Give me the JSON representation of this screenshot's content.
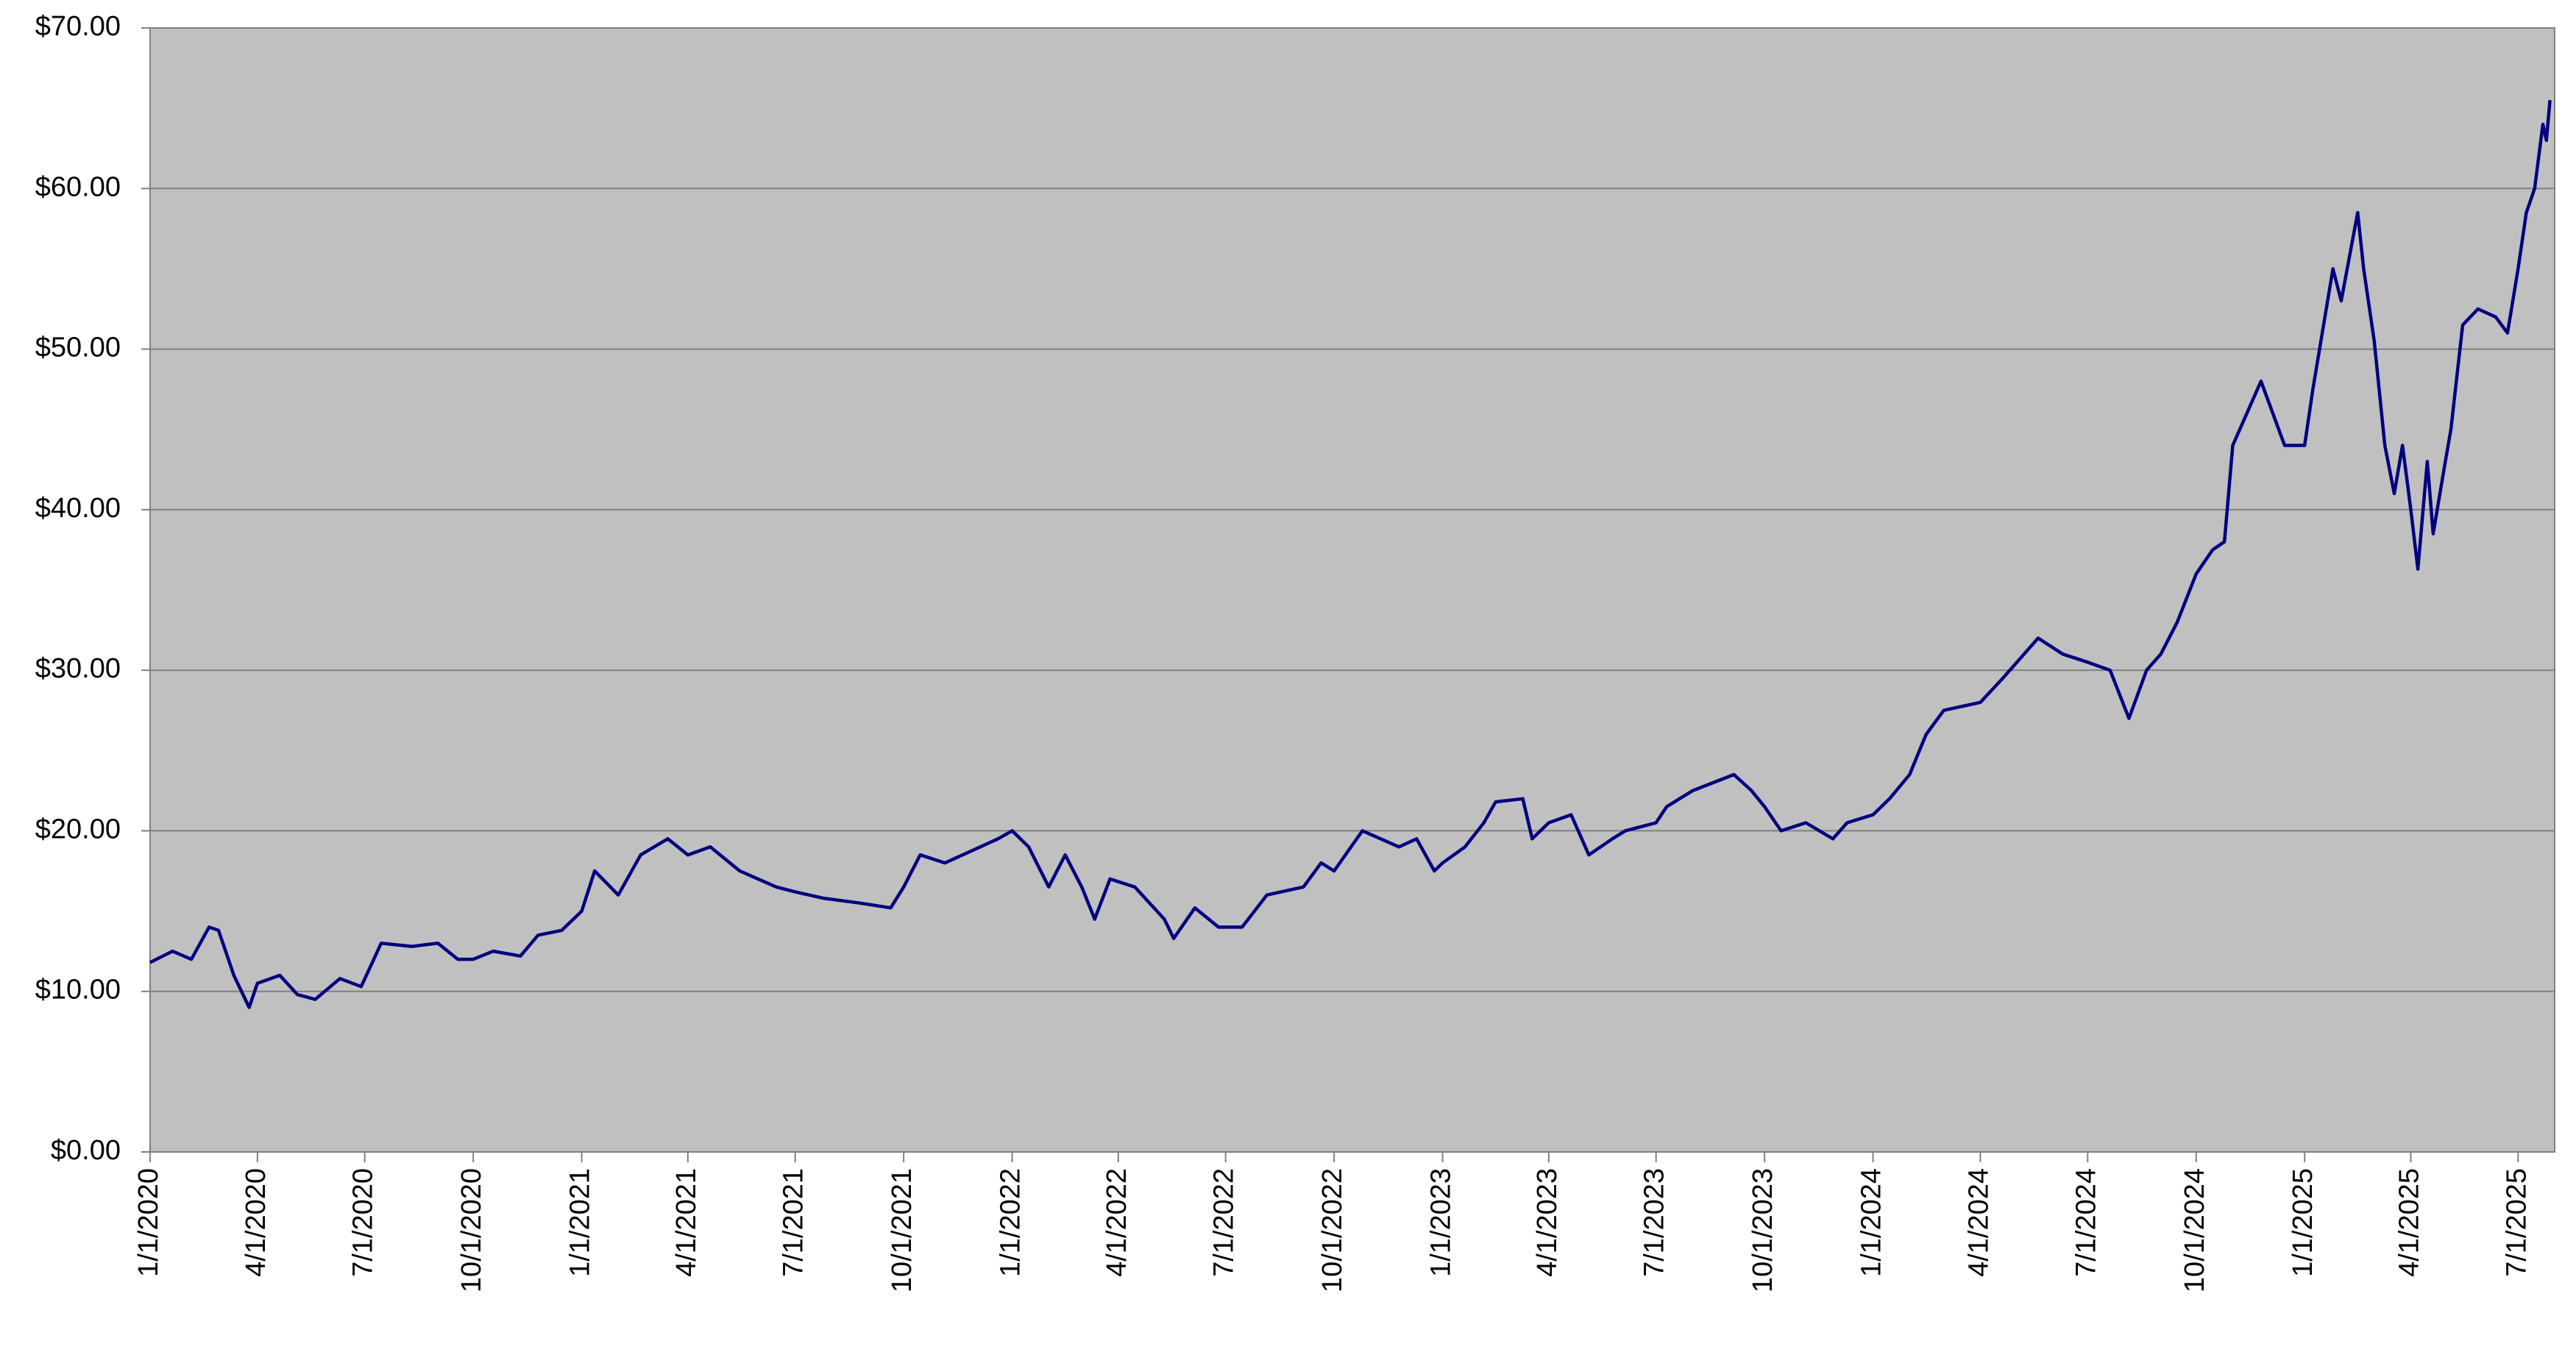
{
  "chart_data": {
    "type": "line",
    "color": "#000080",
    "background": "#c0c0c0",
    "grid": true,
    "xlim": [
      "1/1/2020",
      "8/1/2025"
    ],
    "xticks": [
      "1/1/2020",
      "4/1/2020",
      "7/1/2020",
      "10/1/2020",
      "1/1/2021",
      "4/1/2021",
      "7/1/2021",
      "10/1/2021",
      "1/1/2022",
      "4/1/2022",
      "7/1/2022",
      "10/1/2022",
      "1/1/2023",
      "4/1/2023",
      "7/1/2023",
      "10/1/2023",
      "1/1/2024",
      "4/1/2024",
      "7/1/2024",
      "10/1/2024",
      "1/1/2025",
      "4/1/2025",
      "7/1/2025"
    ],
    "ylim": [
      0,
      70
    ],
    "yticks": [
      {
        "value": 0,
        "label": "$0.00"
      },
      {
        "value": 10,
        "label": "$10.00"
      },
      {
        "value": 20,
        "label": "$20.00"
      },
      {
        "value": 30,
        "label": "$30.00"
      },
      {
        "value": 40,
        "label": "$40.00"
      },
      {
        "value": 50,
        "label": "$50.00"
      },
      {
        "value": 60,
        "label": "$60.00"
      },
      {
        "value": 70,
        "label": "$70.00"
      }
    ],
    "x": [
      "1/1/2020",
      "1/20/2020",
      "2/5/2020",
      "2/20/2020",
      "2/28/2020",
      "3/12/2020",
      "3/25/2020",
      "4/1/2020",
      "4/20/2020",
      "5/5/2020",
      "5/20/2020",
      "6/10/2020",
      "6/28/2020",
      "7/15/2020",
      "8/10/2020",
      "9/1/2020",
      "9/18/2020",
      "10/1/2020",
      "10/18/2020",
      "11/10/2020",
      "11/25/2020",
      "12/15/2020",
      "1/1/2021",
      "1/12/2021",
      "2/1/2021",
      "2/20/2021",
      "3/15/2021",
      "4/1/2021",
      "4/20/2021",
      "5/15/2021",
      "6/15/2021",
      "7/1/2021",
      "7/25/2021",
      "8/25/2021",
      "9/20/2021",
      "10/1/2021",
      "10/15/2021",
      "11/5/2021",
      "12/5/2021",
      "12/20/2021",
      "1/1/2022",
      "1/15/2022",
      "2/1/2022",
      "2/15/2022",
      "3/1/2022",
      "3/12/2022",
      "3/25/2022",
      "4/15/2022",
      "5/10/2022",
      "5/18/2022",
      "6/5/2022",
      "6/25/2022",
      "7/15/2022",
      "8/5/2022",
      "9/5/2022",
      "9/20/2022",
      "10/1/2022",
      "10/25/2022",
      "11/25/2022",
      "12/10/2022",
      "12/25/2022",
      "1/1/2023",
      "1/20/2023",
      "2/5/2023",
      "2/15/2023",
      "3/10/2023",
      "3/18/2023",
      "4/1/2023",
      "4/20/2023",
      "5/5/2023",
      "5/25/2023",
      "6/5/2023",
      "7/1/2023",
      "7/10/2023",
      "8/1/2023",
      "9/5/2023",
      "9/20/2023",
      "10/1/2023",
      "10/15/2023",
      "11/5/2023",
      "11/28/2023",
      "12/10/2023",
      "1/1/2024",
      "1/15/2024",
      "2/1/2024",
      "2/15/2024",
      "3/1/2024",
      "4/1/2024",
      "4/20/2024",
      "5/20/2024",
      "6/10/2024",
      "7/1/2024",
      "7/20/2024",
      "8/5/2024",
      "8/20/2024",
      "9/1/2024",
      "9/15/2024",
      "10/1/2024",
      "10/15/2024",
      "10/25/2024",
      "11/1/2024",
      "11/25/2024",
      "12/15/2024",
      "1/1/2025",
      "1/8/2025",
      "1/25/2025",
      "2/1/2025",
      "2/15/2025",
      "2/20/2025",
      "3/1/2025",
      "3/10/2025",
      "3/18/2025",
      "3/25/2025",
      "4/1/2025",
      "4/7/2025",
      "4/15/2025",
      "4/20/2025",
      "4/28/2025",
      "5/5/2025",
      "5/15/2025",
      "5/28/2025",
      "6/12/2025",
      "6/22/2025",
      "7/1/2025",
      "7/8/2025",
      "7/15/2025",
      "7/22/2025",
      "7/25/2025",
      "7/28/2025"
    ],
    "values": [
      11.8,
      12.5,
      12,
      14,
      13.8,
      11,
      9,
      10.5,
      11,
      9.8,
      9.5,
      10.8,
      10.3,
      13,
      12.8,
      13,
      12,
      12,
      12.5,
      12.2,
      13.5,
      13.8,
      15,
      17.5,
      16,
      18.5,
      19.5,
      18.5,
      19,
      17.5,
      16.5,
      16.2,
      15.8,
      15.5,
      15.2,
      16.5,
      18.5,
      18,
      19,
      19.5,
      20,
      19,
      16.5,
      18.5,
      16.5,
      14.5,
      17,
      16.5,
      14.5,
      13.3,
      15.2,
      14,
      14,
      16,
      16.5,
      18,
      17.5,
      20,
      19,
      19.5,
      17.5,
      18,
      19,
      20.5,
      21.8,
      22,
      19.5,
      20.5,
      21,
      18.5,
      19.5,
      20,
      20.5,
      21.5,
      22.5,
      23.5,
      22.5,
      21.5,
      20,
      20.5,
      19.5,
      20.5,
      21,
      22,
      23.5,
      26,
      27.5,
      28,
      29.5,
      32,
      31,
      30.5,
      30,
      27,
      30,
      31,
      33,
      36,
      37.5,
      38,
      44,
      48,
      44,
      44,
      47.5,
      55,
      53,
      58.5,
      55,
      50.5,
      44,
      41,
      44,
      40,
      36.3,
      43,
      38.5,
      42,
      45,
      51.5,
      52.5,
      52,
      51,
      55,
      58.5,
      60,
      64,
      63,
      65.5
    ]
  }
}
